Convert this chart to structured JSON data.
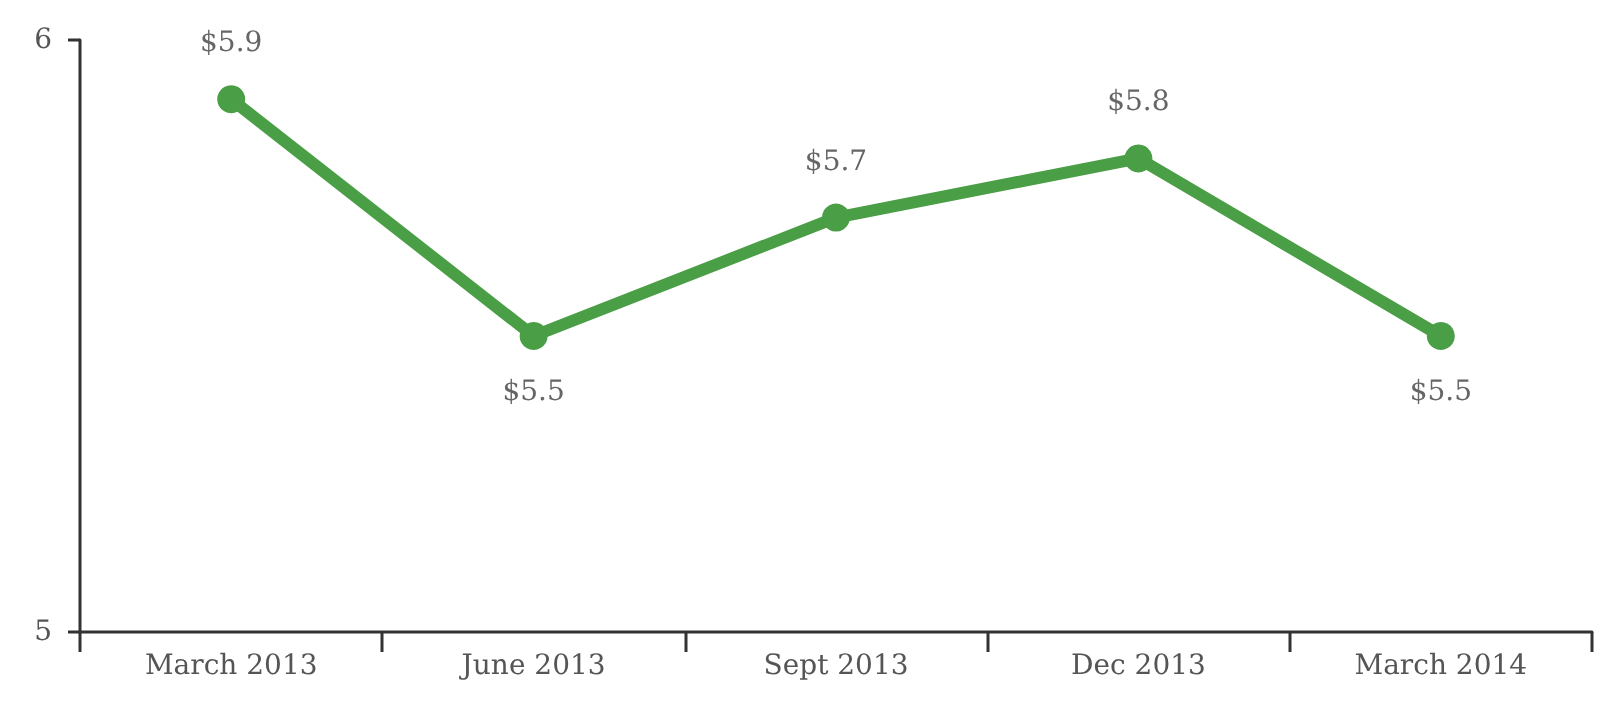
{
  "chart_data": {
    "type": "line",
    "categories": [
      "March 2013",
      "June 2013",
      "Sept 2013",
      "Dec 2013",
      "March 2014"
    ],
    "series": [
      {
        "color": "#4a9e45",
        "values": [
          5.9,
          5.5,
          5.7,
          5.8,
          5.5
        ],
        "value_labels": [
          "$5.9",
          "$5.5",
          "$5.7",
          "$5.8",
          "$5.5"
        ]
      }
    ],
    "ylim": [
      5,
      6
    ],
    "yticks": [
      5,
      6
    ],
    "grid": false,
    "marker": "circle",
    "line_style": "solid"
  }
}
